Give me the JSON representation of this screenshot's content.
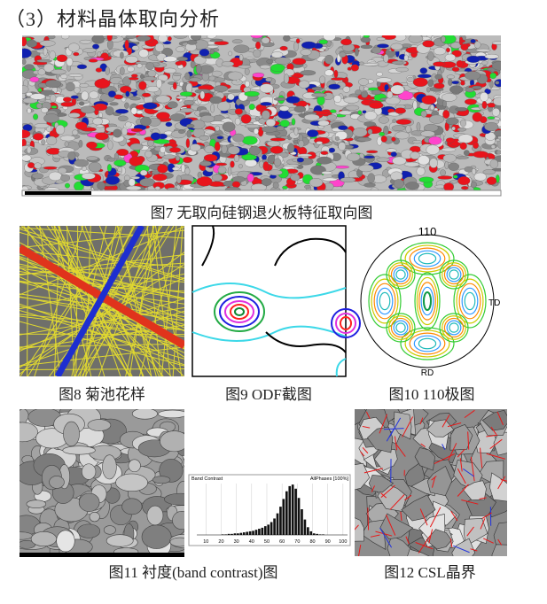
{
  "heading": "（3）材料晶体取向分析",
  "figures": [
    {
      "caption": "图7 无取向硅钢退火板特征取向图"
    },
    {
      "caption": "图8 菊池花样"
    },
    {
      "caption": "图9 ODF截图"
    },
    {
      "caption": "图10 110极图",
      "labels": {
        "top": "110",
        "right": "TD",
        "bottom": "RD"
      }
    },
    {
      "caption": "图11 衬度(band contrast)图"
    },
    {
      "caption": "图12 CSL晶界"
    }
  ],
  "chart_data": {
    "type": "histogram",
    "title": "Band Contrast",
    "subtitle": "AllPhases [100%]",
    "bins": [
      20,
      22,
      24,
      26,
      28,
      30,
      32,
      34,
      36,
      38,
      40,
      42,
      44,
      46,
      48,
      50,
      52,
      54,
      56,
      58,
      60,
      62,
      64,
      66,
      68,
      70,
      72,
      74,
      76,
      78,
      80,
      82,
      84,
      86,
      88,
      90
    ],
    "values": [
      1,
      1,
      2,
      2,
      3,
      3,
      4,
      5,
      6,
      7,
      8,
      10,
      12,
      14,
      17,
      20,
      25,
      32,
      42,
      55,
      70,
      85,
      95,
      98,
      90,
      72,
      50,
      30,
      15,
      7,
      3,
      2,
      1,
      1,
      0
    ],
    "color": "#111111",
    "xlim": [
      4,
      103
    ],
    "xticks": [
      10,
      20,
      30,
      40,
      50,
      60,
      70,
      80,
      90,
      100
    ],
    "ylim": [
      0,
      100
    ],
    "grid": true
  }
}
